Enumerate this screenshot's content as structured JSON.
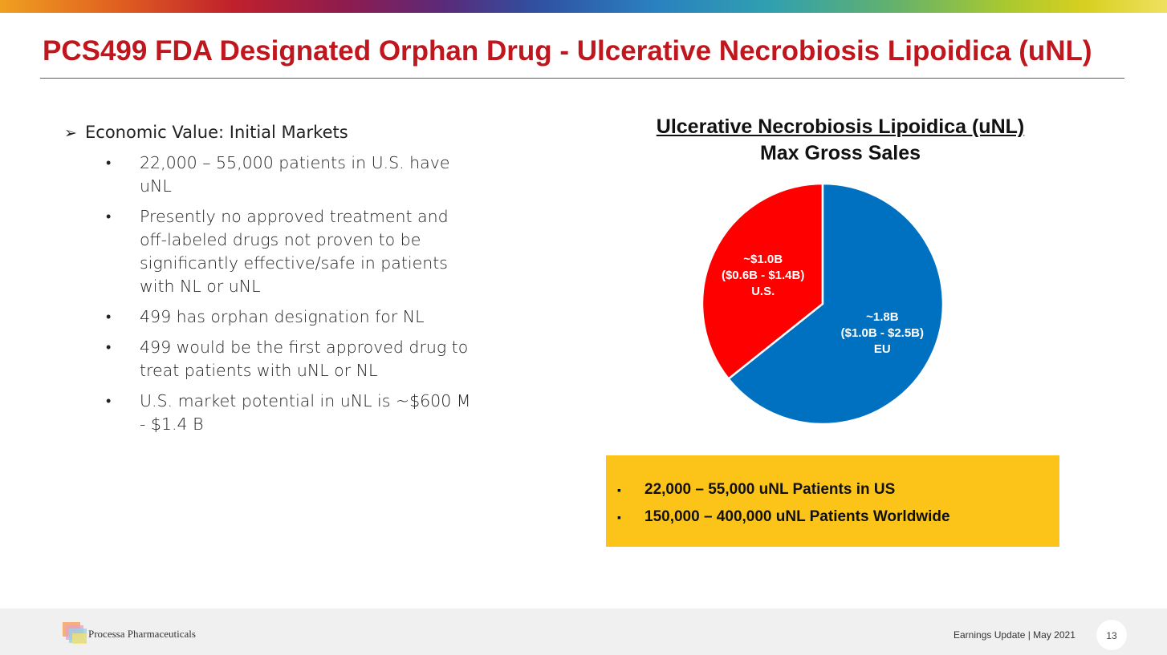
{
  "slide": {
    "title": "PCS499 FDA Designated Orphan Drug - Ulcerative Necrobiosis Lipoidica (uNL)",
    "page_number": "13"
  },
  "left": {
    "heading_glyph": "➢",
    "heading": "Economic Value: Initial Markets",
    "bullet_glyph": "•",
    "bullets": [
      "22,000 – 55,000 patients in U.S. have uNL",
      "Presently no approved treatment and off-labeled drugs not proven to be significantly effective/safe in patients with NL or uNL",
      "499 has orphan designation for NL",
      "499 would be the first approved drug to treat patients with uNL or NL",
      "U.S. market potential in uNL is ~$600 M - $1.4 B"
    ]
  },
  "chart_data": {
    "type": "pie",
    "title": "Ulcerative Necrobiosis Lipoidica (uNL)",
    "subtitle": "Max Gross Sales",
    "slices": [
      {
        "name": "U.S.",
        "value": 1.0,
        "label": "~$1.0B",
        "range": "($0.6B - $1.4B)",
        "color": "#ff0000"
      },
      {
        "name": "EU",
        "value": 1.8,
        "label": "~1.8B",
        "range": "($1.0B - $2.5B)",
        "color": "#0070c0"
      }
    ],
    "start_angle_deg": 0,
    "direction": "counterclockwise",
    "legend": "none"
  },
  "callout": {
    "background": "#fcc419",
    "marker": "▪",
    "items": [
      "22,000 – 55,000 uNL Patients in US",
      "150,000 – 400,000 uNL Patients Worldwide"
    ]
  },
  "footer": {
    "company": "Processa Pharmaceuticals",
    "text": "Earnings Update | May 2021"
  }
}
